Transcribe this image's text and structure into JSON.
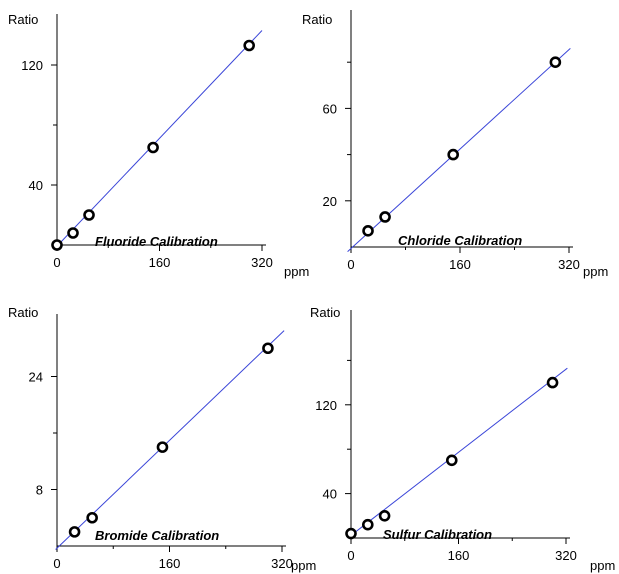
{
  "chart_data": [
    {
      "type": "scatter",
      "title": "Fluoride Calibration",
      "ylabel": "Ratio",
      "xunit": "ppm",
      "xlim": [
        0,
        320
      ],
      "ylim": [
        0,
        150
      ],
      "xticks": [
        0,
        160,
        320
      ],
      "yticks": [
        40,
        120
      ],
      "yminor": [
        80
      ],
      "points": [
        {
          "x": 0,
          "y": 0
        },
        {
          "x": 25,
          "y": 8
        },
        {
          "x": 50,
          "y": 20
        },
        {
          "x": 150,
          "y": 65
        },
        {
          "x": 300,
          "y": 133
        }
      ],
      "fit": {
        "x0": -5,
        "y0": -3,
        "x1": 320,
        "y1": 143
      },
      "colors": {
        "fit": "#3a45d8",
        "marker": "#000000"
      }
    },
    {
      "type": "scatter",
      "title": "Chloride Calibration",
      "ylabel": "Ratio",
      "xunit": "ppm",
      "xlim": [
        0,
        320
      ],
      "ylim": [
        0,
        100
      ],
      "xticks": [
        0,
        160,
        320
      ],
      "yticks": [
        20,
        60
      ],
      "yminor": [
        40,
        80
      ],
      "points": [
        {
          "x": 25,
          "y": 7
        },
        {
          "x": 50,
          "y": 13
        },
        {
          "x": 150,
          "y": 40
        },
        {
          "x": 300,
          "y": 80
        }
      ],
      "fit": {
        "x0": -5,
        "y0": -2,
        "x1": 322,
        "y1": 86
      },
      "colors": {
        "fit": "#3a45d8",
        "marker": "#000000"
      }
    },
    {
      "type": "scatter",
      "title": "Bromide Calibration",
      "ylabel": "Ratio",
      "xunit": "ppm",
      "xlim": [
        0,
        320
      ],
      "ylim": [
        0,
        32
      ],
      "xticks": [
        0,
        160,
        320
      ],
      "yticks": [
        8,
        24
      ],
      "yminor": [
        16
      ],
      "points": [
        {
          "x": 25,
          "y": 2
        },
        {
          "x": 50,
          "y": 4
        },
        {
          "x": 150,
          "y": 14
        },
        {
          "x": 300,
          "y": 28
        }
      ],
      "fit": {
        "x0": -2,
        "y0": -0.5,
        "x1": 323,
        "y1": 30.5
      },
      "colors": {
        "fit": "#3a45d8",
        "marker": "#000000"
      }
    },
    {
      "type": "scatter",
      "title": "Sulfur Calibration",
      "ylabel": "Ratio",
      "xunit": "ppm",
      "xlim": [
        0,
        320
      ],
      "ylim": [
        0,
        200
      ],
      "xticks": [
        0,
        160,
        320
      ],
      "yticks": [
        40,
        120
      ],
      "yminor": [
        80,
        160
      ],
      "points": [
        {
          "x": 0,
          "y": 4
        },
        {
          "x": 25,
          "y": 12
        },
        {
          "x": 50,
          "y": 20
        },
        {
          "x": 150,
          "y": 70
        },
        {
          "x": 300,
          "y": 140
        }
      ],
      "fit": {
        "x0": -5,
        "y0": 0,
        "x1": 322,
        "y1": 153
      },
      "colors": {
        "fit": "#3a45d8",
        "marker": "#000000"
      }
    }
  ]
}
